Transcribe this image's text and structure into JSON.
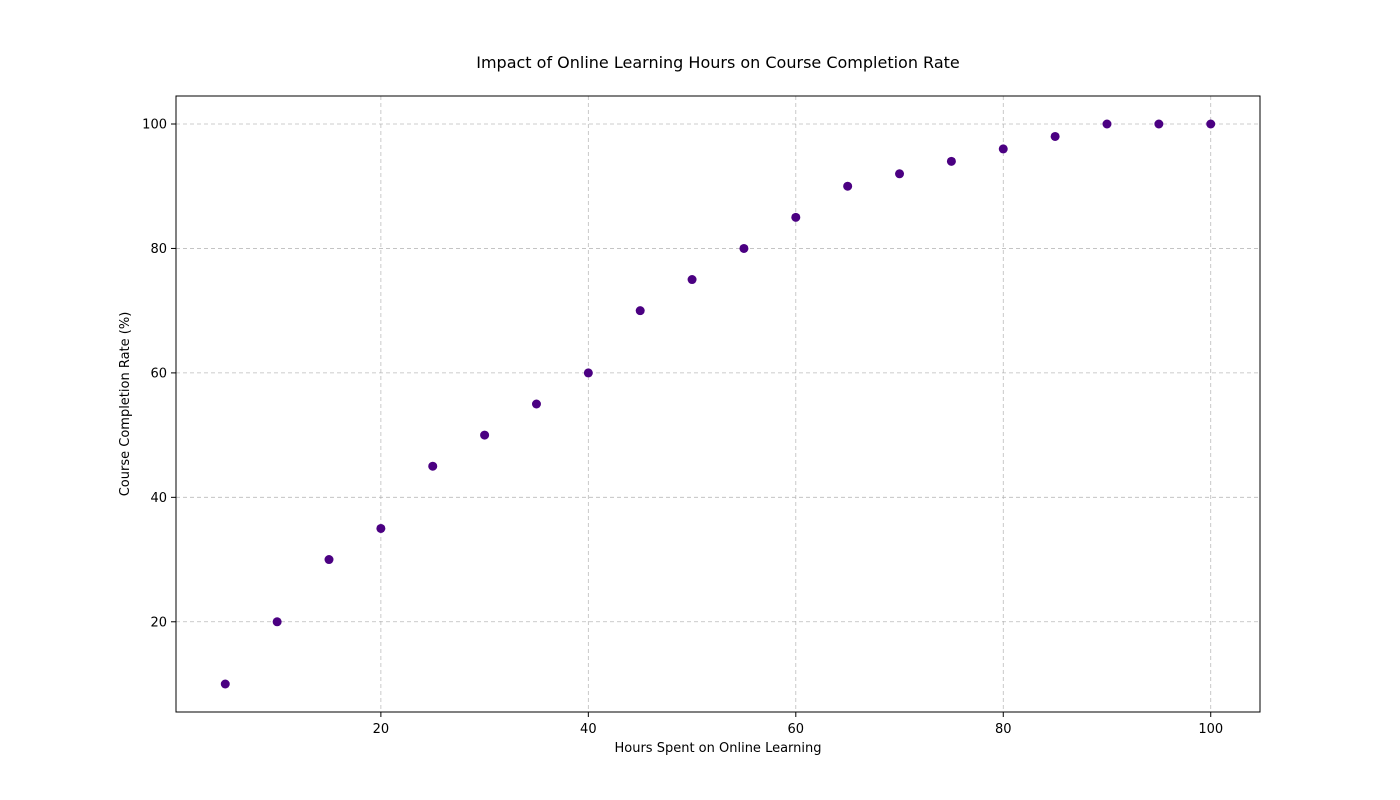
{
  "chart_data": {
    "type": "scatter",
    "title": "Impact of Online Learning Hours on Course Completion Rate",
    "xlabel": "Hours Spent on Online Learning",
    "ylabel": "Course Completion Rate (%)",
    "xlim": [
      0.25,
      104.75
    ],
    "ylim": [
      5.5,
      104.5
    ],
    "xticks": [
      20,
      40,
      60,
      80,
      100
    ],
    "yticks": [
      20,
      40,
      60,
      80,
      100
    ],
    "grid": true,
    "marker_color": "#4b0082",
    "x": [
      5,
      10,
      15,
      20,
      25,
      30,
      35,
      40,
      45,
      50,
      55,
      60,
      65,
      70,
      75,
      80,
      85,
      90,
      95,
      100
    ],
    "y": [
      10,
      20,
      30,
      35,
      45,
      50,
      55,
      60,
      70,
      75,
      80,
      85,
      90,
      92,
      94,
      96,
      98,
      100,
      100,
      100
    ]
  }
}
